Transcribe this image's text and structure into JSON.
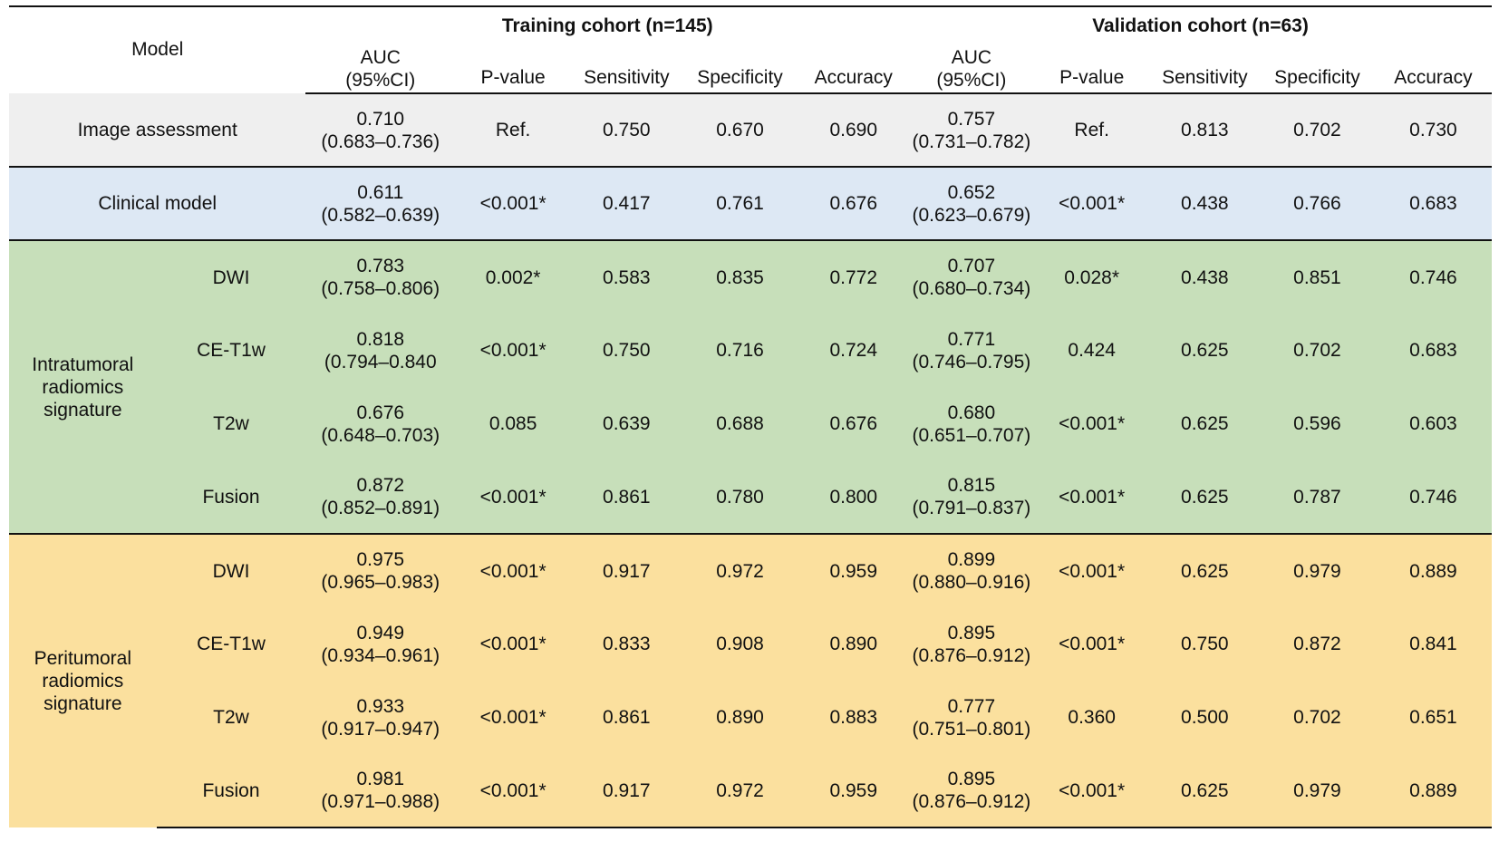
{
  "header": {
    "model_label": "Model",
    "training_label": "Training cohort (n=145)",
    "validation_label": "Validation cohort (n=63)",
    "columns": {
      "auc_line1": "AUC",
      "auc_line2": "(95%CI)",
      "p_value": "P-value",
      "sensitivity": "Sensitivity",
      "specificity": "Specificity",
      "accuracy": "Accuracy"
    }
  },
  "groups": {
    "intratumoral": [
      "Intratumoral",
      "radiomics",
      "signature"
    ],
    "peritumoral": [
      "Peritumoral",
      "radiomics",
      "signature"
    ]
  },
  "rows": [
    {
      "model": "Image assessment",
      "train": {
        "auc": "0.710",
        "ci": "(0.683–0.736)",
        "p": "Ref.",
        "sens": "0.750",
        "spec": "0.670",
        "acc": "0.690"
      },
      "val": {
        "auc": "0.757",
        "ci": "(0.731–0.782)",
        "p": "Ref.",
        "sens": "0.813",
        "spec": "0.702",
        "acc": "0.730"
      }
    },
    {
      "model": "Clinical model",
      "train": {
        "auc": "0.611",
        "ci": "(0.582–0.639)",
        "p": "<0.001*",
        "sens": "0.417",
        "spec": "0.761",
        "acc": "0.676"
      },
      "val": {
        "auc": "0.652",
        "ci": "(0.623–0.679)",
        "p": "<0.001*",
        "sens": "0.438",
        "spec": "0.766",
        "acc": "0.683"
      }
    },
    {
      "model": "DWI",
      "train": {
        "auc": "0.783",
        "ci": "(0.758–0.806)",
        "p": "0.002*",
        "sens": "0.583",
        "spec": "0.835",
        "acc": "0.772"
      },
      "val": {
        "auc": "0.707",
        "ci": "(0.680–0.734)",
        "p": "0.028*",
        "sens": "0.438",
        "spec": "0.851",
        "acc": "0.746"
      }
    },
    {
      "model": "CE-T1w",
      "train": {
        "auc": "0.818",
        "ci": "(0.794–0.840",
        "p": "<0.001*",
        "sens": "0.750",
        "spec": "0.716",
        "acc": "0.724"
      },
      "val": {
        "auc": "0.771",
        "ci": "(0.746–0.795)",
        "p": "0.424",
        "sens": "0.625",
        "spec": "0.702",
        "acc": "0.683"
      }
    },
    {
      "model": "T2w",
      "train": {
        "auc": "0.676",
        "ci": "(0.648–0.703)",
        "p": "0.085",
        "sens": "0.639",
        "spec": "0.688",
        "acc": "0.676"
      },
      "val": {
        "auc": "0.680",
        "ci": "(0.651–0.707)",
        "p": "<0.001*",
        "sens": "0.625",
        "spec": "0.596",
        "acc": "0.603"
      }
    },
    {
      "model": "Fusion",
      "train": {
        "auc": "0.872",
        "ci": "(0.852–0.891)",
        "p": "<0.001*",
        "sens": "0.861",
        "spec": "0.780",
        "acc": "0.800"
      },
      "val": {
        "auc": "0.815",
        "ci": "(0.791–0.837)",
        "p": "<0.001*",
        "sens": "0.625",
        "spec": "0.787",
        "acc": "0.746"
      }
    },
    {
      "model": "DWI",
      "train": {
        "auc": "0.975",
        "ci": "(0.965–0.983)",
        "p": "<0.001*",
        "sens": "0.917",
        "spec": "0.972",
        "acc": "0.959"
      },
      "val": {
        "auc": "0.899",
        "ci": "(0.880–0.916)",
        "p": "<0.001*",
        "sens": "0.625",
        "spec": "0.979",
        "acc": "0.889"
      }
    },
    {
      "model": "CE-T1w",
      "train": {
        "auc": "0.949",
        "ci": "(0.934–0.961)",
        "p": "<0.001*",
        "sens": "0.833",
        "spec": "0.908",
        "acc": "0.890"
      },
      "val": {
        "auc": "0.895",
        "ci": "(0.876–0.912)",
        "p": "<0.001*",
        "sens": "0.750",
        "spec": "0.872",
        "acc": "0.841"
      }
    },
    {
      "model": "T2w",
      "train": {
        "auc": "0.933",
        "ci": "(0.917–0.947)",
        "p": "<0.001*",
        "sens": "0.861",
        "spec": "0.890",
        "acc": "0.883"
      },
      "val": {
        "auc": "0.777",
        "ci": "(0.751–0.801)",
        "p": "0.360",
        "sens": "0.500",
        "spec": "0.702",
        "acc": "0.651"
      }
    },
    {
      "model": "Fusion",
      "train": {
        "auc": "0.981",
        "ci": "(0.971–0.988)",
        "p": "<0.001*",
        "sens": "0.917",
        "spec": "0.972",
        "acc": "0.959"
      },
      "val": {
        "auc": "0.895",
        "ci": "(0.876–0.912)",
        "p": "<0.001*",
        "sens": "0.625",
        "spec": "0.979",
        "acc": "0.889"
      }
    }
  ]
}
